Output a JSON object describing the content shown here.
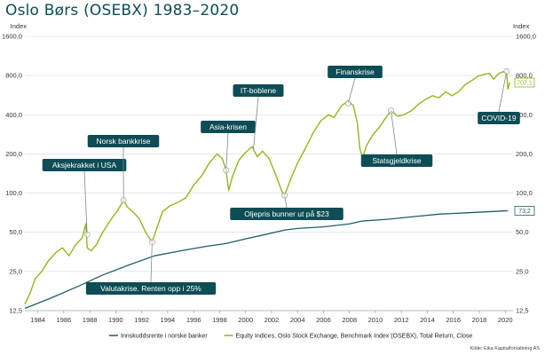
{
  "chart_data": {
    "type": "line",
    "title": "Oslo Børs (OSEBX) 1983–2020",
    "y_scale": "log",
    "ylabel_left": "Index",
    "ylabel_right": "Index",
    "y_ticks": [
      12.5,
      25,
      50,
      100,
      200,
      400,
      800,
      1600
    ],
    "y_tick_labels": [
      "12,5",
      "25,0",
      "50,0",
      "100,0",
      "200,0",
      "400,0",
      "800,0",
      "1600,0"
    ],
    "x_ticks": [
      1984,
      1986,
      1988,
      1990,
      1992,
      1994,
      1996,
      1998,
      2000,
      2002,
      2004,
      2006,
      2008,
      2010,
      2012,
      2014,
      2016,
      2018,
      2020
    ],
    "xlim": [
      1983.0,
      2020.6
    ],
    "ylim": [
      12.5,
      1600
    ],
    "grid": true,
    "legend_position": "bottom",
    "series": [
      {
        "name": "Innskuddsrente i norske banker",
        "color": "#1f5f66",
        "end_label": "73,2",
        "points": [
          [
            1983.0,
            13.0
          ],
          [
            1985.0,
            15.6
          ],
          [
            1987.0,
            19.0
          ],
          [
            1989.0,
            23.5
          ],
          [
            1991.0,
            28.0
          ],
          [
            1993.0,
            33.0
          ],
          [
            1995.0,
            36.0
          ],
          [
            1997.0,
            39.0
          ],
          [
            1998.5,
            41.0
          ],
          [
            2000.0,
            44.5
          ],
          [
            2001.5,
            48.0
          ],
          [
            2003.0,
            52.0
          ],
          [
            2004.0,
            53.5
          ],
          [
            2006.0,
            55.0
          ],
          [
            2008.0,
            58.0
          ],
          [
            2009.0,
            61.0
          ],
          [
            2011.0,
            63.0
          ],
          [
            2013.0,
            66.0
          ],
          [
            2015.0,
            69.0
          ],
          [
            2017.0,
            70.5
          ],
          [
            2020.2,
            73.2
          ]
        ]
      },
      {
        "name": "Equity Indices, Oslo Stock Exchange, Benchmark Index (OSEBX), Total Return, Close",
        "color": "#8cb91f",
        "end_label": "707,1",
        "points": [
          [
            1983.0,
            14.0
          ],
          [
            1983.4,
            17.0
          ],
          [
            1983.8,
            22.0
          ],
          [
            1984.3,
            25.0
          ],
          [
            1984.8,
            30.0
          ],
          [
            1985.4,
            35.0
          ],
          [
            1985.9,
            38.0
          ],
          [
            1986.4,
            33.0
          ],
          [
            1986.9,
            40.0
          ],
          [
            1987.4,
            45.0
          ],
          [
            1987.7,
            58.0
          ],
          [
            1987.8,
            38.0
          ],
          [
            1988.1,
            36.0
          ],
          [
            1988.5,
            40.0
          ],
          [
            1989.0,
            50.0
          ],
          [
            1989.6,
            62.0
          ],
          [
            1990.2,
            75.0
          ],
          [
            1990.6,
            88.0
          ],
          [
            1990.9,
            78.0
          ],
          [
            1991.3,
            72.0
          ],
          [
            1991.8,
            64.0
          ],
          [
            1992.3,
            50.0
          ],
          [
            1992.8,
            42.0
          ],
          [
            1993.2,
            55.0
          ],
          [
            1993.6,
            72.0
          ],
          [
            1994.2,
            80.0
          ],
          [
            1994.8,
            85.0
          ],
          [
            1995.4,
            92.0
          ],
          [
            1996.0,
            115.0
          ],
          [
            1996.6,
            135.0
          ],
          [
            1997.2,
            170.0
          ],
          [
            1997.8,
            200.0
          ],
          [
            1998.2,
            185.0
          ],
          [
            1998.5,
            150.0
          ],
          [
            1998.7,
            105.0
          ],
          [
            1999.0,
            135.0
          ],
          [
            1999.5,
            180.0
          ],
          [
            2000.0,
            205.0
          ],
          [
            2000.5,
            228.0
          ],
          [
            2000.9,
            190.0
          ],
          [
            2001.3,
            210.0
          ],
          [
            2001.8,
            185.0
          ],
          [
            2002.3,
            140.0
          ],
          [
            2002.8,
            103.0
          ],
          [
            2003.0,
            96.0
          ],
          [
            2003.5,
            130.0
          ],
          [
            2004.0,
            170.0
          ],
          [
            2004.6,
            220.0
          ],
          [
            2005.2,
            290.0
          ],
          [
            2005.8,
            360.0
          ],
          [
            2006.4,
            400.0
          ],
          [
            2006.8,
            380.0
          ],
          [
            2007.4,
            470.0
          ],
          [
            2007.9,
            510.0
          ],
          [
            2008.3,
            470.0
          ],
          [
            2008.6,
            350.0
          ],
          [
            2008.8,
            220.0
          ],
          [
            2009.0,
            185.0
          ],
          [
            2009.3,
            230.0
          ],
          [
            2009.8,
            280.0
          ],
          [
            2010.3,
            320.0
          ],
          [
            2010.8,
            380.0
          ],
          [
            2011.2,
            430.0
          ],
          [
            2011.7,
            390.0
          ],
          [
            2012.2,
            400.0
          ],
          [
            2012.8,
            430.0
          ],
          [
            2013.3,
            480.0
          ],
          [
            2013.8,
            520.0
          ],
          [
            2014.4,
            560.0
          ],
          [
            2014.9,
            540.0
          ],
          [
            2015.4,
            600.0
          ],
          [
            2015.9,
            560.0
          ],
          [
            2016.4,
            600.0
          ],
          [
            2016.9,
            680.0
          ],
          [
            2017.4,
            730.0
          ],
          [
            2017.9,
            790.0
          ],
          [
            2018.4,
            820.0
          ],
          [
            2018.8,
            830.0
          ],
          [
            2019.1,
            750.0
          ],
          [
            2019.5,
            830.0
          ],
          [
            2019.9,
            860.0
          ],
          [
            2020.1,
            840.0
          ],
          [
            2020.2,
            630.0
          ],
          [
            2020.35,
            707.1
          ]
        ]
      }
    ],
    "annotations": [
      {
        "label": "Aksjekrakket i USA",
        "x": 1987.8,
        "y": 48.0,
        "has_marker": true
      },
      {
        "label": "Norsk bankkrise",
        "x": 1990.6,
        "y": 88.0,
        "has_marker": true
      },
      {
        "label": "Valutakrise. Renten opp i 25%",
        "x": 1992.8,
        "y": 42.0,
        "has_marker": true
      },
      {
        "label": "Asia-krisen",
        "x": 1998.5,
        "y": 150.0,
        "has_marker": true
      },
      {
        "label": "IT-boblene",
        "x": 2000.6,
        "y": 215.0,
        "has_marker": false
      },
      {
        "label": "Oljepris bunner ut på $23",
        "x": 2003.0,
        "y": 96.0,
        "has_marker": true
      },
      {
        "label": "Finanskrise",
        "x": 2007.9,
        "y": 490.0,
        "has_marker": true
      },
      {
        "label": "Statsgjeldkrise",
        "x": 2011.2,
        "y": 430.0,
        "has_marker": true
      },
      {
        "label": "COVID-19",
        "x": 2020.1,
        "y": 860.0,
        "has_marker": true
      }
    ],
    "source": "Kilde: Eika Kapitalforvaltning AS"
  }
}
